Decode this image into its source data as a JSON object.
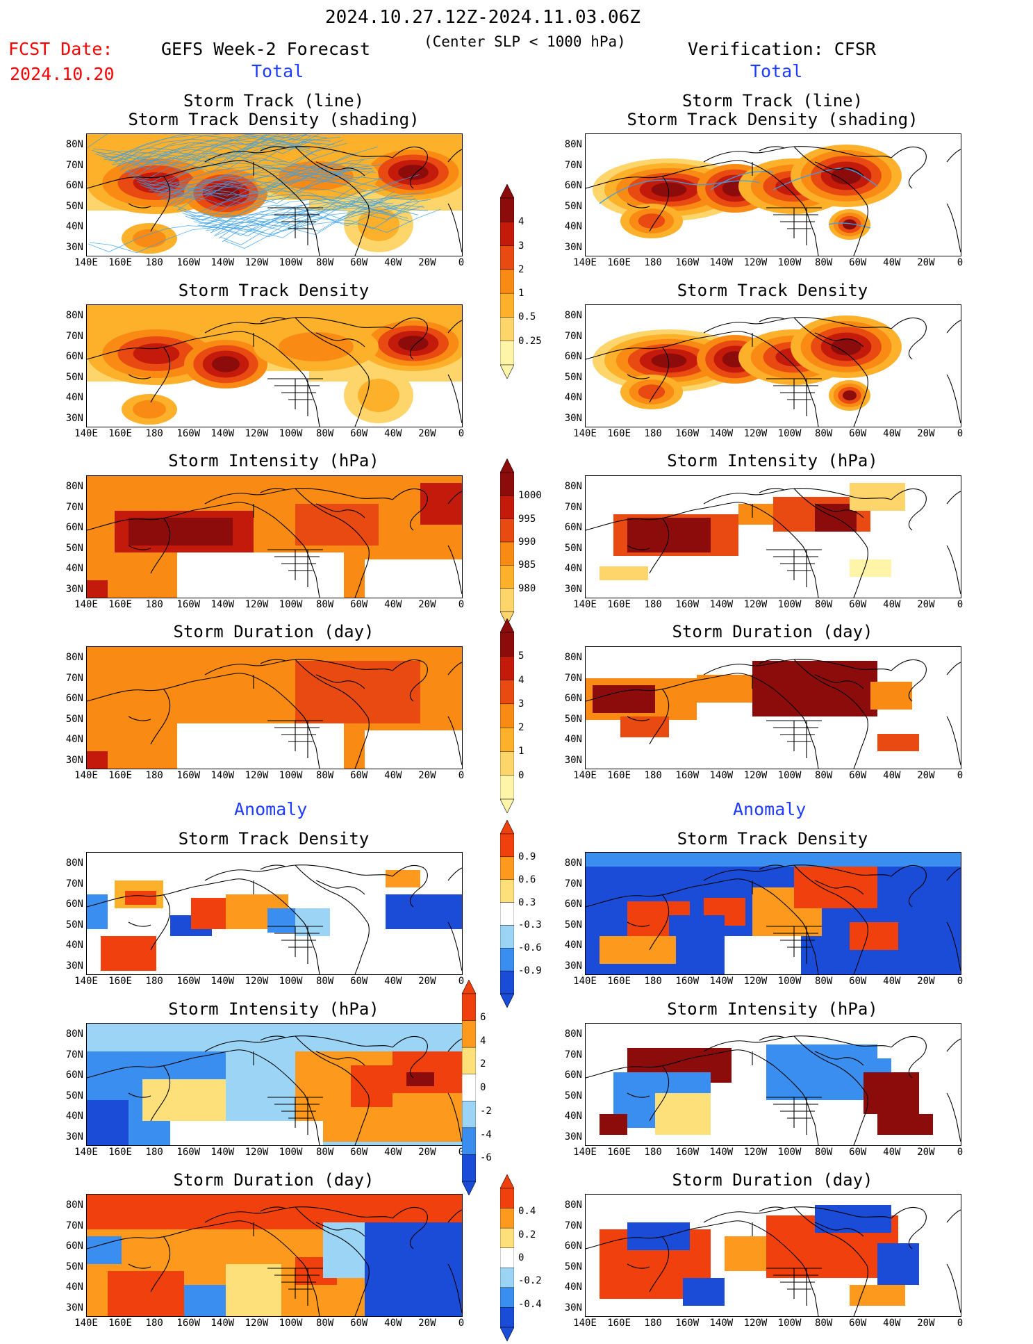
{
  "header": {
    "date_range": "2024.10.27.12Z-2024.11.03.06Z",
    "subtitle": "(Center SLP < 1000 hPa)",
    "fcst_label": "FCST Date:",
    "fcst_date": "2024.10.20",
    "left_title": "GEFS Week-2 Forecast",
    "right_title": "Verification: CFSR",
    "left_section": "Total",
    "right_section": "Total",
    "anomaly_left": "Anomaly",
    "anomaly_right": "Anomaly"
  },
  "panels": {
    "r1_title_a": "Storm Track (line)",
    "r1_title_b": "Storm Track Density (shading)",
    "r2_title": "Storm Track Density",
    "r3_title": "Storm Intensity (hPa)",
    "r4_title": "Storm Duration (day)",
    "r5_title": "Storm Track Density",
    "r6_title": "Storm Intensity (hPa)",
    "r7_title": "Storm Duration (day)"
  },
  "axes": {
    "lat_labels": [
      "80N",
      "70N",
      "60N",
      "50N",
      "40N",
      "30N"
    ],
    "lon_labels": [
      "140E",
      "160E",
      "180",
      "160W",
      "140W",
      "120W",
      "100W",
      "80W",
      "60W",
      "40W",
      "20W",
      "0"
    ]
  },
  "colorbars": {
    "density_total": [
      "4",
      "3",
      "2",
      "1",
      "0.5",
      "0.25"
    ],
    "intensity_total": [
      "1000",
      "995",
      "990",
      "985",
      "980"
    ],
    "duration_total": [
      "5",
      "4",
      "3",
      "2",
      "1",
      "0"
    ],
    "density_anom": [
      "0.9",
      "0.6",
      "0.3",
      "-0.3",
      "-0.6",
      "-0.9"
    ],
    "intensity_anom": [
      "6",
      "4",
      "2",
      "0",
      "-2",
      "-4",
      "-6"
    ],
    "duration_anom": [
      "0.4",
      "0.2",
      "0",
      "-0.2",
      "-0.4"
    ]
  },
  "colors": {
    "total_scale": [
      "#fff5a8",
      "#fdd56a",
      "#fdb02a",
      "#f98a14",
      "#e84a12",
      "#c41a0c",
      "#8c0b0b"
    ],
    "anom_scale": [
      "#1a4cd8",
      "#3a8ef0",
      "#9cd4f6",
      "#ffffff",
      "#fde07a",
      "#fd9a1e",
      "#f0400e"
    ],
    "track_line": "#3aa0e6"
  }
}
